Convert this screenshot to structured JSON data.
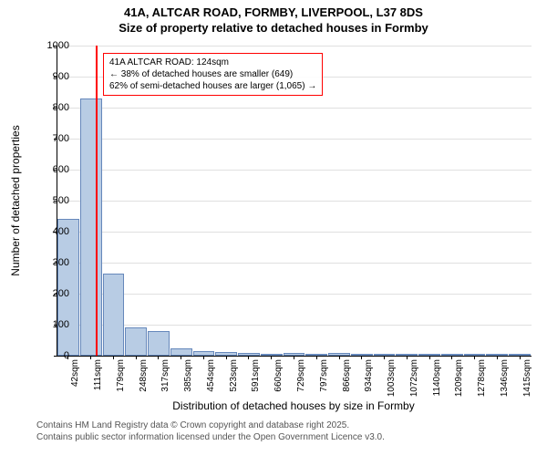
{
  "title_line1": "41A, ALTCAR ROAD, FORMBY, LIVERPOOL, L37 8DS",
  "title_line2": "Size of property relative to detached houses in Formby",
  "yaxis_label": "Number of detached properties",
  "xaxis_label": "Distribution of detached houses by size in Formby",
  "footer_line1": "Contains HM Land Registry data © Crown copyright and database right 2025.",
  "footer_line2": "Contains public sector information licensed under the Open Government Licence v3.0.",
  "annotation": {
    "line1": "41A ALTCAR ROAD: 124sqm",
    "line2": "← 38% of detached houses are smaller (649)",
    "line3": "62% of semi-detached houses are larger (1,065) →"
  },
  "chart": {
    "type": "histogram",
    "ylim": [
      0,
      1000
    ],
    "ytick_step": 100,
    "background_color": "#ffffff",
    "grid_color": "#e0e0e0",
    "bar_fill": "#b8cce4",
    "bar_border": "#6688bb",
    "marker_color": "#ff0000",
    "annotation_border": "#ff0000",
    "title_fontsize": 13,
    "label_fontsize": 12,
    "tick_fontsize": 11,
    "xtick_fontsize": 10,
    "marker_x_value": 124,
    "x_min": 42,
    "x_tick_step": 68.65,
    "x_tick_count": 21,
    "categories": [
      "42sqm",
      "111sqm",
      "179sqm",
      "248sqm",
      "317sqm",
      "385sqm",
      "454sqm",
      "523sqm",
      "591sqm",
      "660sqm",
      "729sqm",
      "797sqm",
      "866sqm",
      "934sqm",
      "1003sqm",
      "1072sqm",
      "1140sqm",
      "1209sqm",
      "1278sqm",
      "1346sqm",
      "1415sqm"
    ],
    "values": [
      440,
      830,
      265,
      90,
      80,
      25,
      15,
      12,
      10,
      6,
      8,
      5,
      8,
      4,
      3,
      2,
      2,
      2,
      1,
      1,
      2
    ]
  }
}
